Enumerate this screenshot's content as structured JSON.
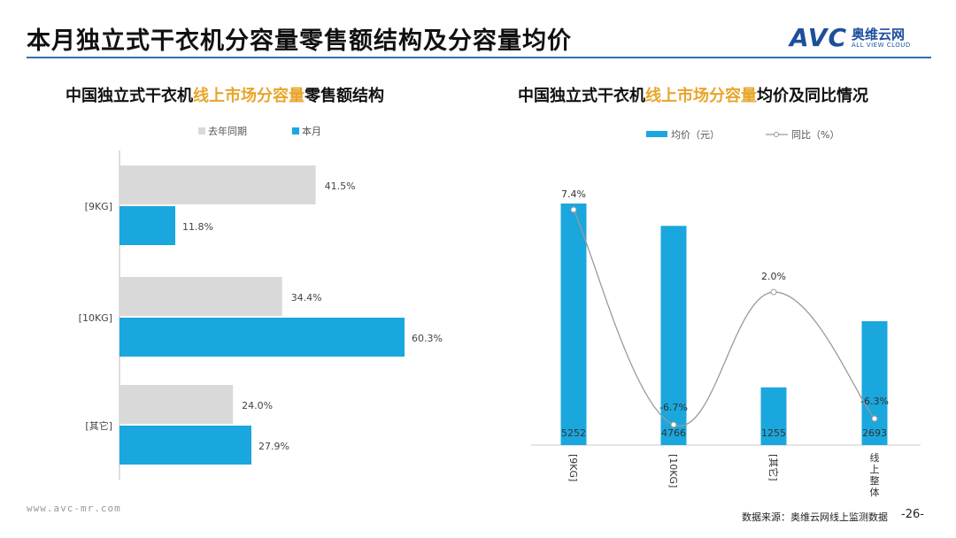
{
  "page": {
    "title": "本月独立式干衣机分容量零售额结构及分容量均价",
    "logo_cn": "奥维云网",
    "logo_en": "ALL VIEW CLOUD",
    "logo_avc": "AVC",
    "url": "www.avc-mr.com",
    "source": "数据来源：奥维云网线上监测数据",
    "page_num": "-26-"
  },
  "left_chart": {
    "title_a": "中国独立式干衣机",
    "title_hl": "线上市场分容量",
    "title_b": "零售额结构"
  },
  "right_chart": {
    "title_a": "中国独立式干衣机",
    "title_hl": "线上市场分容量",
    "title_b": "均价及同比情况"
  },
  "colors": {
    "blue": "#1aa7dd",
    "gray": "#d9d9d9",
    "line": "#9a9a9a",
    "accent": "#e8a52a",
    "brand": "#1c4f9c"
  },
  "chart_data": [
    {
      "type": "bar",
      "orientation": "horizontal",
      "categories": [
        "[9KG]",
        "[10KG]",
        "[其它]"
      ],
      "series": [
        {
          "name": "去年同期",
          "values": [
            41.5,
            34.4,
            24.0
          ],
          "labels": [
            "41.5%",
            "34.4%",
            "24.0%"
          ],
          "color": "#d9d9d9"
        },
        {
          "name": "本月",
          "values": [
            11.8,
            60.3,
            27.9
          ],
          "labels": [
            "11.8%",
            "60.3%",
            "27.9%"
          ],
          "color": "#1aa7dd"
        }
      ],
      "xlim": [
        0,
        70
      ],
      "legend": "top"
    },
    {
      "type": "bar",
      "categories": [
        "[9KG]",
        "[10KG]",
        "[其它]",
        "线上整体"
      ],
      "series": [
        {
          "name": "均价（元）",
          "values": [
            5252,
            4766,
            1255,
            2693
          ],
          "labels": [
            "5252",
            "4766",
            "1255",
            "2693"
          ],
          "color": "#1aa7dd"
        },
        {
          "name": "同比（%）",
          "type": "line",
          "values": [
            7.4,
            -6.7,
            2.0,
            -6.3
          ],
          "labels": [
            "7.4%",
            "-6.7%",
            "2.0%",
            "-6.3%"
          ],
          "color": "#9a9a9a"
        }
      ],
      "legend": "top"
    }
  ]
}
